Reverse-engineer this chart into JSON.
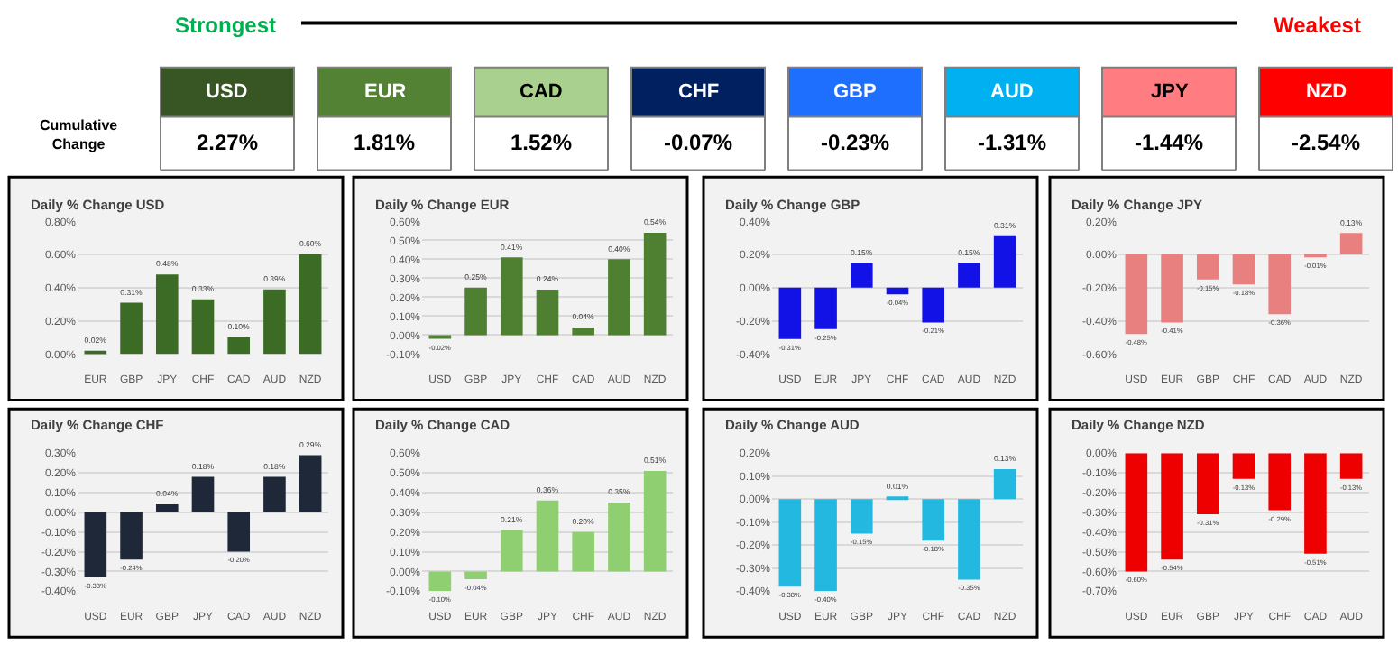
{
  "chart_data": [
    {
      "type": "other",
      "categories": [
        "USD",
        "EUR",
        "CAD",
        "CHF",
        "GBP",
        "AUD",
        "JPY",
        "NZD"
      ],
      "values": [
        2.27,
        1.81,
        1.52,
        -0.07,
        -0.23,
        -1.31,
        -1.44,
        -2.54
      ],
      "value_labels": [
        "2.27%",
        "1.81%",
        "1.52%",
        "-0.07%",
        "-0.23%",
        "-1.31%",
        "-1.44%",
        "-2.54%"
      ],
      "colors": [
        "#375623",
        "#548235",
        "#a9d08e",
        "#002060",
        "#1f6fff",
        "#00b0f0",
        "#ff7c80",
        "#ff0000"
      ],
      "annotations": [
        "Strongest",
        "Weakest",
        "Cumulative Change"
      ]
    },
    {
      "type": "bar",
      "title": "Daily % Change USD",
      "categories": [
        "EUR",
        "GBP",
        "JPY",
        "CHF",
        "CAD",
        "AUD",
        "NZD"
      ],
      "values": [
        0.02,
        0.31,
        0.48,
        0.33,
        0.1,
        0.39,
        0.6
      ],
      "value_labels": [
        "0.02%",
        "0.31%",
        "0.48%",
        "0.33%",
        "0.10%",
        "0.39%",
        "0.60%"
      ],
      "color": "#3b6b25",
      "ylim": [
        0,
        0.8
      ],
      "yticks": [
        {
          "value": 0,
          "label": "0.00%"
        },
        {
          "value": 0.2,
          "label": "0.20%"
        },
        {
          "value": 0.4,
          "label": "0.40%"
        },
        {
          "value": 0.6,
          "label": "0.60%"
        },
        {
          "value": 0.8,
          "label": "0.80%"
        }
      ],
      "grid": "y"
    },
    {
      "type": "bar",
      "title": "Daily % Change EUR",
      "categories": [
        "USD",
        "GBP",
        "JPY",
        "CHF",
        "CAD",
        "AUD",
        "NZD"
      ],
      "values": [
        -0.02,
        0.25,
        0.41,
        0.24,
        0.04,
        0.4,
        0.54
      ],
      "value_labels": [
        "-0.02%",
        "0.25%",
        "0.41%",
        "0.24%",
        "0.04%",
        "0.40%",
        "0.54%"
      ],
      "color": "#4f7f30",
      "ylim": [
        -0.1,
        0.6
      ],
      "yticks": [
        {
          "value": -0.1,
          "label": "-0.10%"
        },
        {
          "value": 0,
          "label": "0.00%"
        },
        {
          "value": 0.1,
          "label": "0.10%"
        },
        {
          "value": 0.2,
          "label": "0.20%"
        },
        {
          "value": 0.3,
          "label": "0.30%"
        },
        {
          "value": 0.4,
          "label": "0.40%"
        },
        {
          "value": 0.5,
          "label": "0.50%"
        },
        {
          "value": 0.6,
          "label": "0.60%"
        }
      ],
      "grid": "y"
    },
    {
      "type": "bar",
      "title": "Daily % Change GBP",
      "categories": [
        "USD",
        "EUR",
        "JPY",
        "CHF",
        "CAD",
        "AUD",
        "NZD"
      ],
      "values": [
        -0.31,
        -0.25,
        0.15,
        -0.04,
        -0.21,
        0.15,
        0.31
      ],
      "value_labels": [
        "-0.31%",
        "-0.25%",
        "0.15%",
        "-0.04%",
        "-0.21%",
        "0.15%",
        "0.31%"
      ],
      "color": "#1212e6",
      "ylim": [
        -0.4,
        0.4
      ],
      "yticks": [
        {
          "value": -0.4,
          "label": "-0.40%"
        },
        {
          "value": -0.2,
          "label": "-0.20%"
        },
        {
          "value": 0,
          "label": "0.00%"
        },
        {
          "value": 0.2,
          "label": "0.20%"
        },
        {
          "value": 0.4,
          "label": "0.40%"
        }
      ],
      "grid": "y"
    },
    {
      "type": "bar",
      "title": "Daily % Change JPY",
      "categories": [
        "USD",
        "EUR",
        "GBP",
        "CHF",
        "CAD",
        "AUD",
        "NZD"
      ],
      "values": [
        -0.48,
        -0.41,
        -0.15,
        -0.18,
        -0.36,
        -0.01,
        0.13
      ],
      "value_labels": [
        "-0.48%",
        "-0.41%",
        "-0.15%",
        "-0.18%",
        "-0.36%",
        "-0.01%",
        "0.13%"
      ],
      "color": "#e98080",
      "ylim": [
        -0.6,
        0.2
      ],
      "yticks": [
        {
          "value": -0.6,
          "label": "-0.60%"
        },
        {
          "value": -0.4,
          "label": "-0.40%"
        },
        {
          "value": -0.2,
          "label": "-0.20%"
        },
        {
          "value": 0,
          "label": "0.00%"
        },
        {
          "value": 0.2,
          "label": "0.20%"
        }
      ],
      "grid": "y"
    },
    {
      "type": "bar",
      "title": "Daily % Change CHF",
      "categories": [
        "USD",
        "EUR",
        "GBP",
        "JPY",
        "CAD",
        "AUD",
        "NZD"
      ],
      "values": [
        -0.33,
        -0.24,
        0.04,
        0.18,
        -0.2,
        0.18,
        0.29
      ],
      "value_labels": [
        "-0.33%",
        "-0.24%",
        "0.04%",
        "0.18%",
        "-0.20%",
        "0.18%",
        "0.29%"
      ],
      "color": "#1e2838",
      "ylim": [
        -0.4,
        0.3
      ],
      "yticks": [
        {
          "value": -0.4,
          "label": "-0.40%"
        },
        {
          "value": -0.3,
          "label": "-0.30%"
        },
        {
          "value": -0.2,
          "label": "-0.20%"
        },
        {
          "value": -0.1,
          "label": "-0.10%"
        },
        {
          "value": 0,
          "label": "0.00%"
        },
        {
          "value": 0.1,
          "label": "0.10%"
        },
        {
          "value": 0.2,
          "label": "0.20%"
        },
        {
          "value": 0.3,
          "label": "0.30%"
        }
      ],
      "grid": "y"
    },
    {
      "type": "bar",
      "title": "Daily % Change CAD",
      "categories": [
        "USD",
        "EUR",
        "GBP",
        "JPY",
        "CHF",
        "AUD",
        "NZD"
      ],
      "values": [
        -0.1,
        -0.04,
        0.21,
        0.36,
        0.2,
        0.35,
        0.51
      ],
      "value_labels": [
        "-0.10%",
        "-0.04%",
        "0.21%",
        "0.36%",
        "0.20%",
        "0.35%",
        "0.51%"
      ],
      "color": "#8fcf72",
      "ylim": [
        -0.1,
        0.6
      ],
      "yticks": [
        {
          "value": -0.1,
          "label": "-0.10%"
        },
        {
          "value": 0,
          "label": "0.00%"
        },
        {
          "value": 0.1,
          "label": "0.10%"
        },
        {
          "value": 0.2,
          "label": "0.20%"
        },
        {
          "value": 0.3,
          "label": "0.30%"
        },
        {
          "value": 0.4,
          "label": "0.40%"
        },
        {
          "value": 0.5,
          "label": "0.50%"
        },
        {
          "value": 0.6,
          "label": "0.60%"
        }
      ],
      "grid": "y"
    },
    {
      "type": "bar",
      "title": "Daily % Change AUD",
      "categories": [
        "USD",
        "EUR",
        "GBP",
        "JPY",
        "CHF",
        "CAD",
        "NZD"
      ],
      "values": [
        -0.38,
        -0.4,
        -0.15,
        0.01,
        -0.18,
        -0.35,
        0.13
      ],
      "value_labels": [
        "-0.38%",
        "-0.40%",
        "-0.15%",
        "0.01%",
        "-0.18%",
        "-0.35%",
        "0.13%"
      ],
      "color": "#22b8e0",
      "ylim": [
        -0.4,
        0.2
      ],
      "yticks": [
        {
          "value": -0.4,
          "label": "-0.40%"
        },
        {
          "value": -0.3,
          "label": "-0.30%"
        },
        {
          "value": -0.2,
          "label": "-0.20%"
        },
        {
          "value": -0.1,
          "label": "-0.10%"
        },
        {
          "value": 0,
          "label": "0.00%"
        },
        {
          "value": 0.1,
          "label": "0.10%"
        },
        {
          "value": 0.2,
          "label": "0.20%"
        }
      ],
      "grid": "y"
    },
    {
      "type": "bar",
      "title": "Daily % Change NZD",
      "categories": [
        "USD",
        "EUR",
        "GBP",
        "JPY",
        "CHF",
        "CAD",
        "AUD"
      ],
      "values": [
        -0.6,
        -0.54,
        -0.31,
        -0.13,
        -0.29,
        -0.51,
        -0.13
      ],
      "value_labels": [
        "-0.60%",
        "-0.54%",
        "-0.31%",
        "-0.13%",
        "-0.29%",
        "-0.51%",
        "-0.13%"
      ],
      "color": "#ee0000",
      "ylim": [
        -0.7,
        0
      ],
      "yticks": [
        {
          "value": -0.7,
          "label": "-0.70%"
        },
        {
          "value": -0.6,
          "label": "-0.60%"
        },
        {
          "value": -0.5,
          "label": "-0.50%"
        },
        {
          "value": -0.4,
          "label": "-0.40%"
        },
        {
          "value": -0.3,
          "label": "-0.30%"
        },
        {
          "value": -0.2,
          "label": "-0.20%"
        },
        {
          "value": -0.1,
          "label": "-0.10%"
        },
        {
          "value": 0,
          "label": "0.00%"
        }
      ],
      "grid": "y"
    }
  ]
}
